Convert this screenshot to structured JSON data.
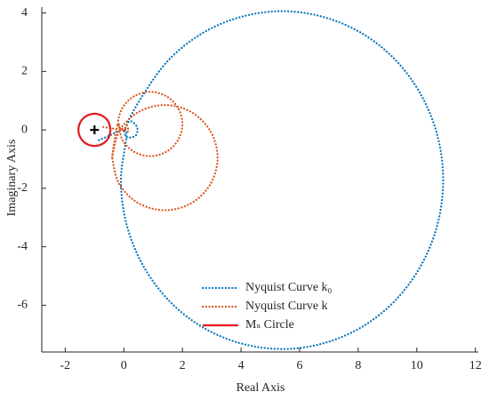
{
  "chart_data": {
    "type": "line",
    "xlabel": "Real Axis",
    "ylabel": "Imaginary Axis",
    "xlim": [
      -2.8,
      12.1
    ],
    "ylim": [
      -7.6,
      4.2
    ],
    "xticks": [
      -2,
      0,
      2,
      4,
      6,
      8,
      10,
      12
    ],
    "yticks": [
      -6,
      -4,
      -2,
      0,
      2,
      4
    ],
    "legend": "lower-right",
    "critical_point": {
      "x": -1,
      "y": 0,
      "color": "#000000"
    },
    "series": [
      {
        "name": "Nyquist Curve k₀",
        "color": "#0072BD",
        "line_style": "dotted",
        "x": [
          -0.85,
          -0.5,
          -0.2,
          0,
          0.2,
          0.45,
          0.4,
          0.1,
          0,
          0.09,
          -0.1,
          0.09,
          0.64,
          1.51,
          2.65,
          3.98,
          5.4,
          6.82,
          8.15,
          9.29,
          10.16,
          10.71,
          10.9,
          10.71,
          10.16,
          9.29,
          8.15,
          6.82,
          5.4,
          3.98,
          2.65,
          1.51,
          0.64,
          0.09
        ],
        "values": [
          -0.35,
          -0.2,
          -0.05,
          0,
          0.3,
          0.1,
          -0.2,
          -0.25,
          0,
          -0.22,
          -1.72,
          -3.22,
          -4.61,
          -5.81,
          -6.73,
          -7.3,
          -7.5,
          -7.3,
          -6.73,
          -5.81,
          -4.61,
          -3.22,
          -1.72,
          -0.22,
          1.17,
          2.37,
          3.29,
          3.86,
          4.06,
          3.86,
          3.29,
          2.37,
          1.17,
          0.2
        ]
      },
      {
        "name": "Nyquist Curve k",
        "color": "#D95319",
        "line_style": "dotted",
        "x": [
          -0.7,
          -0.4,
          0,
          0.1,
          0.15,
          0,
          -0.2,
          -0.05,
          0.35,
          0.9,
          1.45,
          1.85,
          2.0,
          1.85,
          1.45,
          0.9,
          0.35,
          -0.05,
          -0.2,
          -0.4,
          -0.16,
          0.5,
          1.4,
          2.3,
          2.96,
          3.2,
          2.96,
          2.3,
          1.4,
          0.5,
          -0.16,
          -0.4
        ],
        "values": [
          0.1,
          0.05,
          0,
          0.15,
          -0.05,
          0,
          0.2,
          0.75,
          1.15,
          1.3,
          1.15,
          0.75,
          0.2,
          -0.35,
          -0.75,
          -0.9,
          -0.75,
          -0.35,
          0.2,
          -0.95,
          -0.05,
          0.61,
          0.85,
          0.61,
          -0.05,
          -0.95,
          -1.85,
          -2.51,
          -2.75,
          -2.51,
          -1.85,
          -0.95
        ]
      },
      {
        "name": "Mₛ Circle",
        "color": "#E31A1C",
        "line_style": "solid",
        "x": [
          -0.45,
          -0.524,
          -0.725,
          -1,
          -1.275,
          -1.476,
          -1.55,
          -1.476,
          -1.275,
          -1,
          -0.725,
          -0.524,
          -0.45
        ],
        "values": [
          0,
          0.275,
          0.476,
          0.55,
          0.476,
          0.275,
          0,
          -0.275,
          -0.476,
          -0.55,
          -0.476,
          -0.275,
          0
        ]
      }
    ]
  }
}
